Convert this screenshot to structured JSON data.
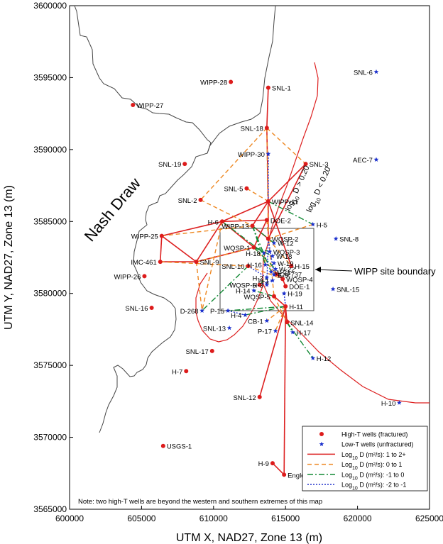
{
  "chart_data": {
    "type": "scatter",
    "xlabel": "UTM X, NAD27, Zone 13 (m)",
    "ylabel": "UTM Y, NAD27, Zone 13 (m)",
    "xlim": [
      600000,
      625000
    ],
    "ylim": [
      3565000,
      3600000
    ],
    "x_ticks": [
      600000,
      605000,
      610000,
      615000,
      620000,
      625000
    ],
    "y_ticks": [
      3565000,
      3570000,
      3575000,
      3580000,
      3585000,
      3590000,
      3595000,
      3600000
    ],
    "x_tick_labels": [
      "600000",
      "605000",
      "610000",
      "615000",
      "620000",
      "625000"
    ],
    "y_tick_labels": [
      "3565000",
      "3570000",
      "3575000",
      "3580000",
      "3585000",
      "3590000",
      "3595000",
      "3600000"
    ],
    "grid": false,
    "legend_position": "bottom-right",
    "legend": [
      {
        "label": "High-T wells (fractured)",
        "style": "red-dot"
      },
      {
        "label": "Low-T wells (unfractured)",
        "style": "blue-star"
      },
      {
        "label": "Log",
        "sub": "10",
        "rest": " D (m²/s):  1 to 2+",
        "style": "solid",
        "color": "#dd2020"
      },
      {
        "label": "Log",
        "sub": "10",
        "rest": " D (m²/s):  0 to 1",
        "style": "dash",
        "color": "#ee8822"
      },
      {
        "label": "Log",
        "sub": "10",
        "rest": " D (m²/s):  -1 to 0",
        "style": "dashdot",
        "color": "#118833"
      },
      {
        "label": "Log",
        "sub": "10",
        "rest": " D (m²/s):  -2 to -1",
        "style": "dot",
        "color": "#2233cc"
      }
    ],
    "annotations": {
      "region": "Nash Draw",
      "site": "WIPP site boundary",
      "note": "Note:  two high-T wells are beyond the western and southern extremes of this map",
      "d_hi": "> 0.20",
      "d_lo": "< 0.20",
      "d_log": "log",
      "d_sub": "10",
      "d_var": " D "
    },
    "colors": {
      "high_t": "#dd1c1c",
      "low_t": "#1a2fcc",
      "solid": "#dd2020",
      "dash": "#ee8822",
      "dashdot": "#118833",
      "dot": "#2233cc",
      "outline": "#444444",
      "site": "#444444",
      "red_boundary": "#dd2020"
    },
    "wells_high_t": [
      {
        "name": "WIPP-28",
        "x": 611200,
        "y": 3594700
      },
      {
        "name": "SNL-1",
        "x": 613800,
        "y": 3594300
      },
      {
        "name": "WIPP-27",
        "x": 604400,
        "y": 3593100
      },
      {
        "name": "SNL-18",
        "x": 613700,
        "y": 3591500
      },
      {
        "name": "SNL-3",
        "x": 616400,
        "y": 3589000
      },
      {
        "name": "SNL-19",
        "x": 608000,
        "y": 3589000
      },
      {
        "name": "SNL-5",
        "x": 612300,
        "y": 3587300
      },
      {
        "name": "SNL-2",
        "x": 609100,
        "y": 3586500
      },
      {
        "name": "WIPP-11",
        "x": 613800,
        "y": 3586400
      },
      {
        "name": "H-6",
        "x": 610600,
        "y": 3585000
      },
      {
        "name": "DOE-2",
        "x": 613700,
        "y": 3585100
      },
      {
        "name": "WIPP-13",
        "x": 612700,
        "y": 3584700
      },
      {
        "name": "WQSP-2",
        "x": 613800,
        "y": 3583800
      },
      {
        "name": "WQSP-1",
        "x": 612800,
        "y": 3583200
      },
      {
        "name": "WIPP-25",
        "x": 606400,
        "y": 3584000
      },
      {
        "name": "SNL-9",
        "x": 608800,
        "y": 3582200
      },
      {
        "name": "IMC-461",
        "x": 606300,
        "y": 3582200
      },
      {
        "name": "SNL-10",
        "x": 612400,
        "y": 3581900
      },
      {
        "name": "H-15",
        "x": 615400,
        "y": 3581900
      },
      {
        "name": "C-2737",
        "x": 614350,
        "y": 3581350
      },
      {
        "name": "WQSP-4",
        "x": 614800,
        "y": 3581000
      },
      {
        "name": "WQSP-6",
        "x": 613200,
        "y": 3580600
      },
      {
        "name": "DOE-1",
        "x": 615000,
        "y": 3580500
      },
      {
        "name": "WQSP-5",
        "x": 614200,
        "y": 3579800
      },
      {
        "name": "H-11",
        "x": 615000,
        "y": 3579100
      },
      {
        "name": "WIPP-26",
        "x": 605200,
        "y": 3581200
      },
      {
        "name": "SNL-16",
        "x": 605700,
        "y": 3579000
      },
      {
        "name": "SNL-14",
        "x": 615100,
        "y": 3578000
      },
      {
        "name": "SNL-17",
        "x": 609900,
        "y": 3576000
      },
      {
        "name": "H-7",
        "x": 608100,
        "y": 3574600
      },
      {
        "name": "SNL-12",
        "x": 613200,
        "y": 3572800
      },
      {
        "name": "USGS-1",
        "x": 606500,
        "y": 3569400
      },
      {
        "name": "H-9",
        "x": 614100,
        "y": 3568200
      },
      {
        "name": "Engle",
        "x": 614900,
        "y": 3567400
      }
    ],
    "wells_low_t": [
      {
        "name": "SNL-6",
        "x": 621300,
        "y": 3595400
      },
      {
        "name": "WIPP-30",
        "x": 613800,
        "y": 3589700
      },
      {
        "name": "AEC-7",
        "x": 621300,
        "y": 3589300
      },
      {
        "name": "H-5",
        "x": 616900,
        "y": 3584800
      },
      {
        "name": "SNL-8",
        "x": 618500,
        "y": 3583800
      },
      {
        "name": "W-12",
        "x": 614200,
        "y": 3583500
      },
      {
        "name": "WQSP-3",
        "x": 613900,
        "y": 3582900
      },
      {
        "name": "H-18",
        "x": 613500,
        "y": 3582800
      },
      {
        "name": "W-18",
        "x": 614100,
        "y": 3582600
      },
      {
        "name": "W-19",
        "x": 614200,
        "y": 3582100
      },
      {
        "name": "W-22",
        "x": 614300,
        "y": 3581700
      },
      {
        "name": "H-16",
        "x": 613600,
        "y": 3582000
      },
      {
        "name": "W-21",
        "x": 614000,
        "y": 3581500
      },
      {
        "name": "E-9",
        "x": 614200,
        "y": 3581300
      },
      {
        "name": "H-2",
        "x": 613700,
        "y": 3581100
      },
      {
        "name": "H-1",
        "x": 614100,
        "y": 3580900
      },
      {
        "name": "H-3",
        "x": 613700,
        "y": 3580600
      },
      {
        "name": "H-14",
        "x": 612800,
        "y": 3580200
      },
      {
        "name": "H-19",
        "x": 614900,
        "y": 3580000
      },
      {
        "name": "D-268",
        "x": 609200,
        "y": 3578800
      },
      {
        "name": "P-15",
        "x": 611000,
        "y": 3578800
      },
      {
        "name": "H-4",
        "x": 612200,
        "y": 3578500
      },
      {
        "name": "CB-1",
        "x": 613700,
        "y": 3578100
      },
      {
        "name": "P-17",
        "x": 614300,
        "y": 3577400
      },
      {
        "name": "H-17",
        "x": 615500,
        "y": 3577300
      },
      {
        "name": "SNL-15",
        "x": 618300,
        "y": 3580300
      },
      {
        "name": "SNL-13",
        "x": 611100,
        "y": 3577600
      },
      {
        "name": "H-12",
        "x": 616900,
        "y": 3575500
      },
      {
        "name": "H-10",
        "x": 622900,
        "y": 3572400
      }
    ],
    "connections": [
      {
        "type": "solid",
        "x1": 613800,
        "y1": 3594300,
        "x2": 613700,
        "y2": 3591500
      },
      {
        "type": "solid",
        "x1": 613700,
        "y1": 3591500,
        "x2": 613800,
        "y2": 3586400
      },
      {
        "type": "solid",
        "x1": 613800,
        "y1": 3586400,
        "x2": 610600,
        "y2": 3585000
      },
      {
        "type": "solid",
        "x1": 613800,
        "y1": 3586400,
        "x2": 616400,
        "y2": 3589000
      },
      {
        "type": "solid",
        "x1": 613800,
        "y1": 3586400,
        "x2": 612700,
        "y2": 3584700
      },
      {
        "type": "solid",
        "x1": 613800,
        "y1": 3586400,
        "x2": 613800,
        "y2": 3583800
      },
      {
        "type": "solid",
        "x1": 613800,
        "y1": 3586400,
        "x2": 615400,
        "y2": 3581900
      },
      {
        "type": "solid",
        "x1": 616400,
        "y1": 3589000,
        "x2": 613800,
        "y2": 3583800
      },
      {
        "type": "solid",
        "x1": 610600,
        "y1": 3585000,
        "x2": 606400,
        "y2": 3584000
      },
      {
        "type": "solid",
        "x1": 610600,
        "y1": 3585000,
        "x2": 608800,
        "y2": 3582200
      },
      {
        "type": "solid",
        "x1": 610600,
        "y1": 3585000,
        "x2": 613700,
        "y2": 3585100
      },
      {
        "type": "solid",
        "x1": 610600,
        "y1": 3585000,
        "x2": 612800,
        "y2": 3583200
      },
      {
        "type": "solid",
        "x1": 606400,
        "y1": 3584000,
        "x2": 606300,
        "y2": 3582200
      },
      {
        "type": "solid",
        "x1": 606400,
        "y1": 3584000,
        "x2": 608800,
        "y2": 3582200
      },
      {
        "type": "solid",
        "x1": 606300,
        "y1": 3582200,
        "x2": 608800,
        "y2": 3582200
      },
      {
        "type": "solid",
        "x1": 608800,
        "y1": 3582200,
        "x2": 612800,
        "y2": 3583200
      },
      {
        "type": "solid",
        "x1": 612700,
        "y1": 3584700,
        "x2": 613800,
        "y2": 3583800
      },
      {
        "type": "solid",
        "x1": 613700,
        "y1": 3585100,
        "x2": 612800,
        "y2": 3583200
      },
      {
        "type": "solid",
        "x1": 614800,
        "y1": 3581000,
        "x2": 615000,
        "y2": 3580500
      },
      {
        "type": "solid",
        "x1": 614200,
        "y1": 3579800,
        "x2": 615000,
        "y2": 3579100
      },
      {
        "type": "solid",
        "x1": 615000,
        "y1": 3579100,
        "x2": 615100,
        "y2": 3578000
      },
      {
        "type": "solid",
        "x1": 615000,
        "y1": 3579100,
        "x2": 613200,
        "y2": 3572800
      },
      {
        "type": "solid",
        "x1": 615000,
        "y1": 3579100,
        "x2": 614900,
        "y2": 3567400
      },
      {
        "type": "solid",
        "x1": 614100,
        "y1": 3568200,
        "x2": 614900,
        "y2": 3567400
      },
      {
        "type": "solid",
        "x1": 614350,
        "y1": 3581350,
        "x2": 614800,
        "y2": 3581000
      },
      {
        "type": "dash",
        "x1": 613700,
        "y1": 3591500,
        "x2": 609100,
        "y2": 3586500
      },
      {
        "type": "dash",
        "x1": 613700,
        "y1": 3591500,
        "x2": 616400,
        "y2": 3589000
      },
      {
        "type": "dash",
        "x1": 613700,
        "y1": 3591500,
        "x2": 613800,
        "y2": 3583800
      },
      {
        "type": "dash",
        "x1": 609100,
        "y1": 3586500,
        "x2": 612700,
        "y2": 3584700
      },
      {
        "type": "dash",
        "x1": 606400,
        "y1": 3584000,
        "x2": 612700,
        "y2": 3584700
      },
      {
        "type": "dash",
        "x1": 612300,
        "y1": 3587300,
        "x2": 613800,
        "y2": 3586400
      },
      {
        "type": "dash",
        "x1": 606300,
        "y1": 3582200,
        "x2": 612400,
        "y2": 3581900
      },
      {
        "type": "dash",
        "x1": 608800,
        "y1": 3582200,
        "x2": 609200,
        "y2": 3578800
      },
      {
        "type": "dash",
        "x1": 610600,
        "y1": 3585000,
        "x2": 609200,
        "y2": 3578800
      },
      {
        "type": "dash",
        "x1": 608800,
        "y1": 3582200,
        "x2": 612800,
        "y2": 3583200
      },
      {
        "type": "dash",
        "x1": 613800,
        "y1": 3583800,
        "x2": 616900,
        "y2": 3584800
      },
      {
        "type": "dash",
        "x1": 613800,
        "y1": 3583800,
        "x2": 615400,
        "y2": 3581900
      },
      {
        "type": "dash",
        "x1": 612800,
        "y1": 3583200,
        "x2": 614350,
        "y2": 3581350
      },
      {
        "type": "dash",
        "x1": 613700,
        "y1": 3585100,
        "x2": 614200,
        "y2": 3579800
      },
      {
        "type": "dash",
        "x1": 615000,
        "y1": 3579100,
        "x2": 614300,
        "y2": 3577400
      },
      {
        "type": "dash",
        "x1": 615000,
        "y1": 3579100,
        "x2": 613700,
        "y2": 3578100
      },
      {
        "type": "dash",
        "x1": 614200,
        "y1": 3579800,
        "x2": 615100,
        "y2": 3578000
      },
      {
        "type": "dash",
        "x1": 612400,
        "y1": 3581900,
        "x2": 614800,
        "y2": 3581000
      },
      {
        "type": "dashdot",
        "x1": 613800,
        "y1": 3586400,
        "x2": 616900,
        "y2": 3584800
      },
      {
        "type": "dashdot",
        "x1": 610600,
        "y1": 3585000,
        "x2": 613500,
        "y2": 3582800
      },
      {
        "type": "dashdot",
        "x1": 612400,
        "y1": 3581900,
        "x2": 609200,
        "y2": 3578800
      },
      {
        "type": "dashdot",
        "x1": 615000,
        "y1": 3579100,
        "x2": 611000,
        "y2": 3578800
      },
      {
        "type": "dashdot",
        "x1": 615000,
        "y1": 3579100,
        "x2": 612200,
        "y2": 3578500
      },
      {
        "type": "dashdot",
        "x1": 615100,
        "y1": 3578000,
        "x2": 616900,
        "y2": 3575500
      },
      {
        "type": "dashdot",
        "x1": 615100,
        "y1": 3578000,
        "x2": 615500,
        "y2": 3577300
      },
      {
        "type": "dashdot",
        "x1": 612800,
        "y1": 3583200,
        "x2": 613900,
        "y2": 3582900
      },
      {
        "type": "dashdot",
        "x1": 612800,
        "y1": 3583200,
        "x2": 614100,
        "y2": 3582600
      },
      {
        "type": "dashdot",
        "x1": 612700,
        "y1": 3584700,
        "x2": 614000,
        "y2": 3581500
      },
      {
        "type": "dashdot",
        "x1": 612700,
        "y1": 3584700,
        "x2": 613600,
        "y2": 3582000
      },
      {
        "type": "dashdot",
        "x1": 612700,
        "y1": 3584700,
        "x2": 614200,
        "y2": 3583500
      },
      {
        "type": "dashdot",
        "x1": 612800,
        "y1": 3583200,
        "x2": 614300,
        "y2": 3581700
      },
      {
        "type": "dashdot",
        "x1": 613200,
        "y1": 3580600,
        "x2": 613700,
        "y2": 3581100
      },
      {
        "type": "dashdot",
        "x1": 614200,
        "y1": 3579800,
        "x2": 612800,
        "y2": 3580200
      },
      {
        "type": "dot",
        "x1": 613800,
        "y1": 3586400,
        "x2": 613800,
        "y2": 3589700
      },
      {
        "type": "dot",
        "x1": 613800,
        "y1": 3583800,
        "x2": 613700,
        "y2": 3580600
      },
      {
        "type": "dot",
        "x1": 615000,
        "y1": 3579100,
        "x2": 614900,
        "y2": 3580000
      },
      {
        "type": "dot",
        "x1": 613200,
        "y1": 3580600,
        "x2": 614100,
        "y2": 3580900
      },
      {
        "type": "dot",
        "x1": 612400,
        "y1": 3581900,
        "x2": 613700,
        "y2": 3581100
      },
      {
        "type": "dot",
        "x1": 611000,
        "y1": 3578800,
        "x2": 612200,
        "y2": 3578500
      },
      {
        "type": "dot",
        "x1": 613800,
        "y1": 3583800,
        "x2": 614200,
        "y2": 3581300
      }
    ]
  }
}
